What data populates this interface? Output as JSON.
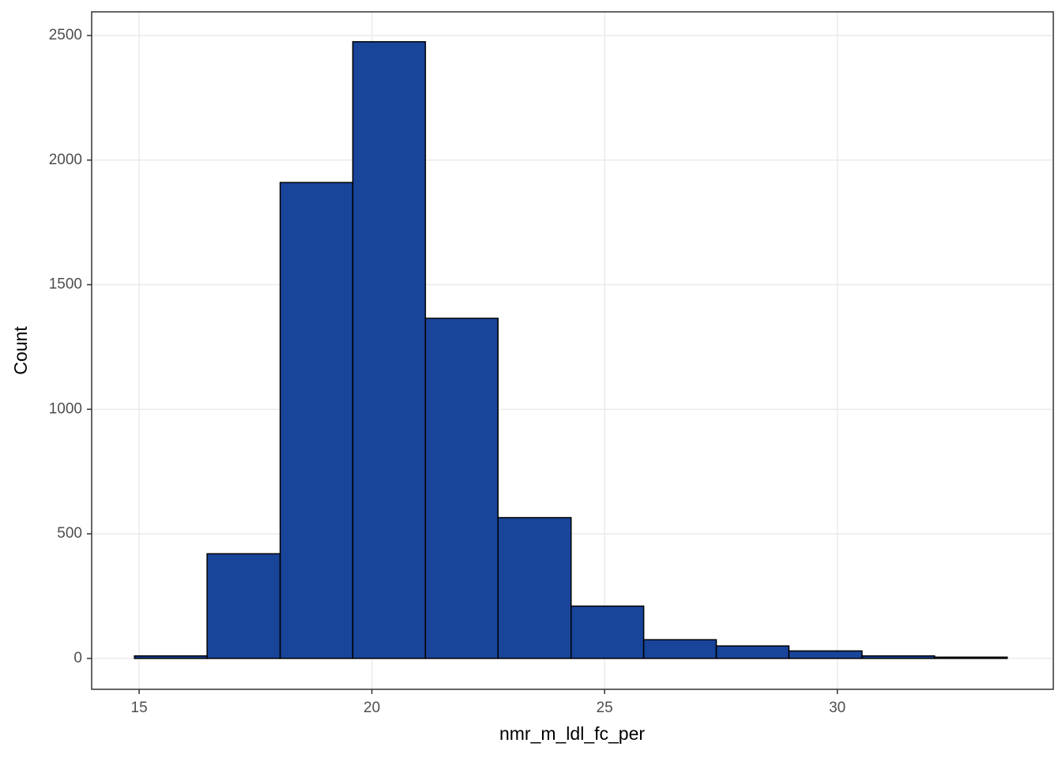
{
  "chart_data": {
    "type": "histogram",
    "x_label": "nmr_m_ldl_fc_per",
    "y_label": "Count",
    "bins": [
      14.9,
      16.46,
      18.03,
      19.59,
      21.15,
      22.71,
      24.28,
      25.84,
      27.4,
      28.96,
      30.53,
      32.09,
      33.65
    ],
    "values": [
      10,
      420,
      1910,
      2475,
      1365,
      565,
      210,
      75,
      50,
      30,
      10,
      5
    ],
    "color": "#18449a",
    "edge_color": "#000000",
    "xlim": [
      13.98,
      34.64
    ],
    "xticks": [
      15,
      20,
      25,
      30
    ],
    "ylim": [
      -124,
      2595
    ],
    "yticks": [
      0,
      500,
      1000,
      1500,
      2000,
      2500
    ],
    "grid": true
  }
}
